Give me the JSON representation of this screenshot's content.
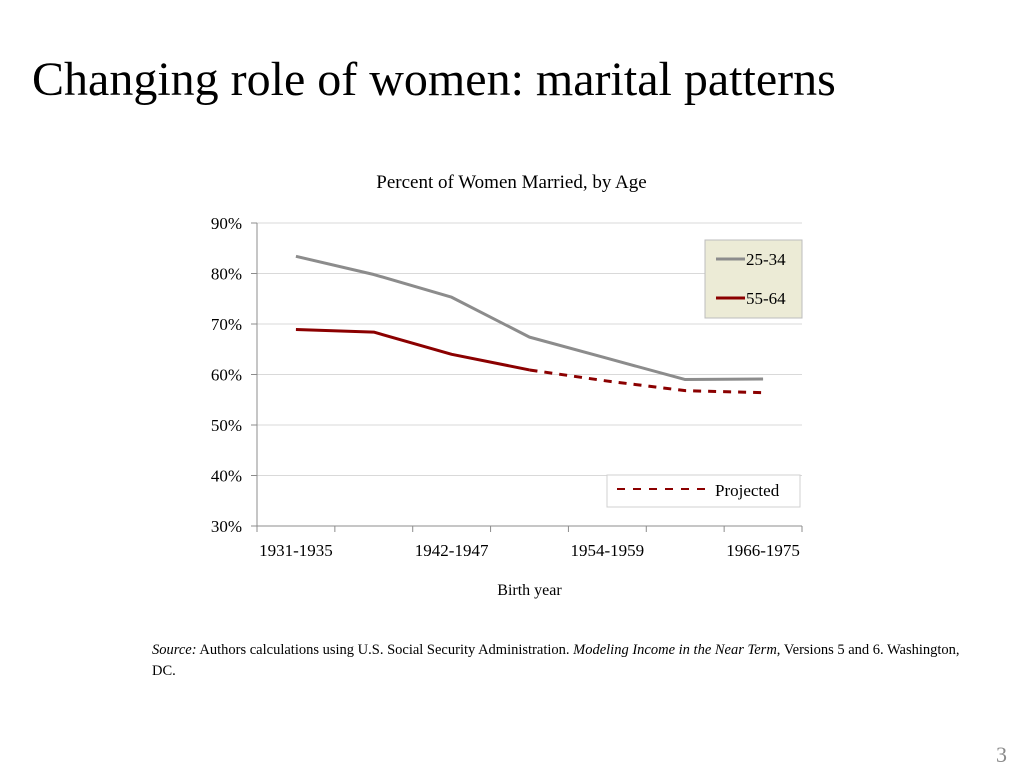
{
  "slide": {
    "title": "Changing role of women: marital patterns",
    "page_number": "3"
  },
  "source": {
    "label": "Source:",
    "text1": " Authors calculations using U.S. Social Security Administration. ",
    "title_italic": "Modeling Income in the Near Term",
    "text2": ", Versions 5 and 6. Washington, DC."
  },
  "chart_data": {
    "type": "line",
    "title": "Percent of Women Married, by Age",
    "xlabel": "Birth year",
    "ylabel": "",
    "categories": [
      "1931-1935",
      "",
      "1942-1947",
      "",
      "1954-1959",
      "",
      "1966-1975"
    ],
    "x_tick_labels": [
      "1931-1935",
      "1942-1947",
      "1954-1959",
      "1966-1975"
    ],
    "y_ticks": [
      "30%",
      "40%",
      "50%",
      "60%",
      "70%",
      "80%",
      "90%"
    ],
    "ylim": [
      30,
      90
    ],
    "y_tick_step": 10,
    "grid": true,
    "legend_position": "top-right",
    "series": [
      {
        "name": "25-34",
        "color": "#8c8c8c",
        "values": [
          83.4,
          79.8,
          75.3,
          67.4,
          63.2,
          59.0,
          59.1
        ],
        "projected_from_index": null
      },
      {
        "name": "55-64",
        "color": "#8b0000",
        "values": [
          68.9,
          68.4,
          64.0,
          60.9,
          58.7,
          56.8,
          56.4
        ],
        "projected_from_index": 3
      }
    ],
    "projected_legend": {
      "label": "Projected",
      "color": "#8b0000",
      "style": "dashed"
    },
    "legend_box_color": "#ecebd6"
  }
}
